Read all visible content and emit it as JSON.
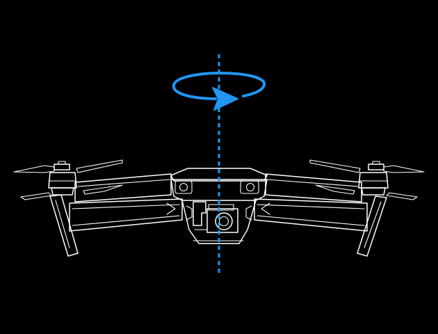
{
  "diagram": {
    "subject": "drone-front-view",
    "annotation": "yaw-rotation-around-vertical-axis",
    "colors": {
      "background": "#000000",
      "line_art": "#ffffff",
      "accent": "#2196f3"
    },
    "icons": [
      "quadcopter-drone",
      "rotation-arrow",
      "vertical-axis"
    ]
  }
}
